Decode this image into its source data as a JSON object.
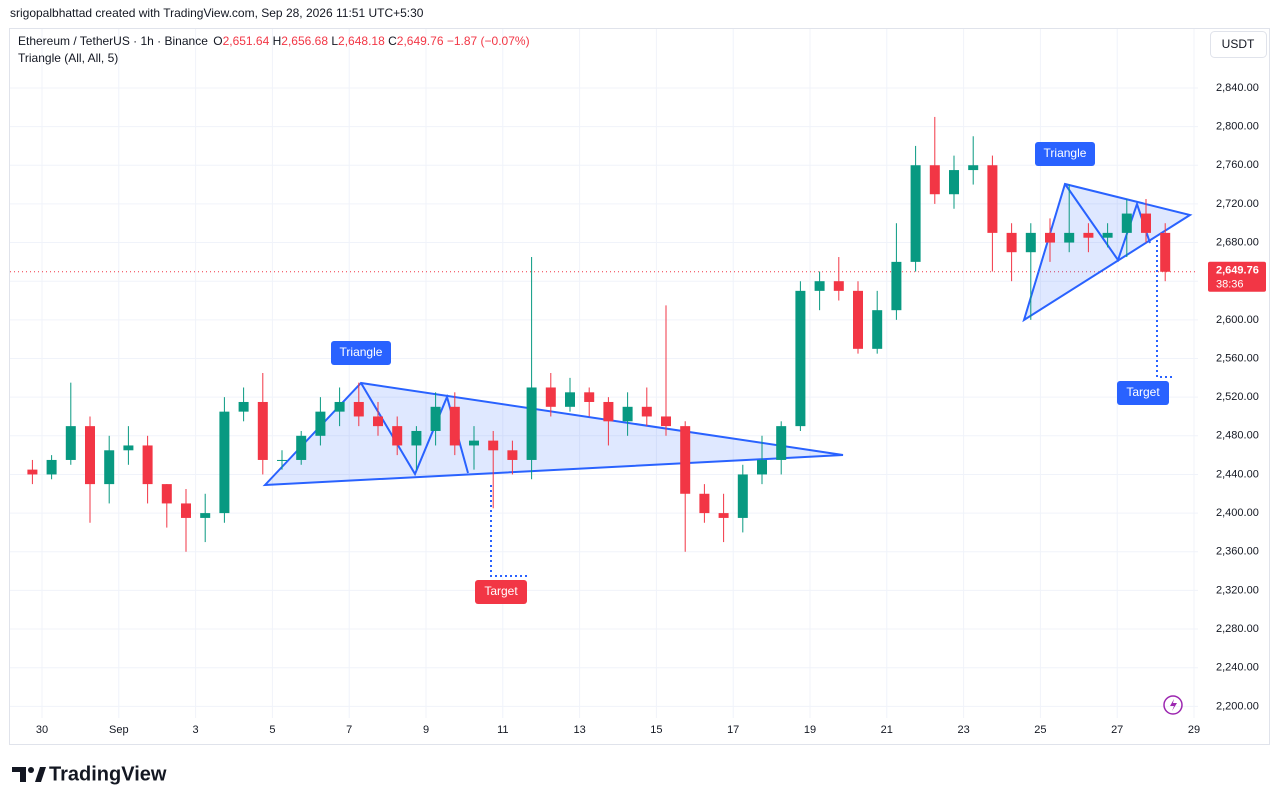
{
  "watermark": "srigopalbhattad created with TradingView.com, Sep 28, 2026 11:51 UTC+5:30",
  "branding": "TradingView",
  "currency": "USDT",
  "chart_data": {
    "type": "candlestick",
    "title": "Ethereum / TetherUS · 1h · Binance",
    "indicator": "Triangle (All, All, 5)",
    "ohlc_legend": [
      {
        "label": "O",
        "value": "2,651.64"
      },
      {
        "label": "H",
        "value": "2,656.68"
      },
      {
        "label": "L",
        "value": "2,648.18"
      },
      {
        "label": "C",
        "value": "2,649.76"
      }
    ],
    "change": "−1.87 (−0.07%)",
    "last_price": {
      "value": 2649.76,
      "label": "2,649.76"
    },
    "countdown": "38:36",
    "annotations": [
      "Triangle",
      "Target",
      "Triangle",
      "Target"
    ],
    "up_color": "#089981",
    "down_color": "#f23645",
    "grid": true,
    "categories": [
      null,
      "30",
      null,
      null,
      null,
      "Sep",
      null,
      null,
      null,
      "3",
      null,
      null,
      null,
      "5",
      null,
      null,
      null,
      "7",
      null,
      null,
      null,
      "9",
      null,
      null,
      null,
      "11",
      null,
      null,
      null,
      "13",
      null,
      null,
      null,
      "15",
      null,
      null,
      null,
      "17",
      null,
      null,
      null,
      "19",
      null,
      null,
      null,
      "21",
      null,
      null,
      null,
      "23",
      null,
      null,
      null,
      "25",
      null,
      null,
      null,
      "27",
      null,
      null,
      null,
      "29"
    ],
    "open": [
      2445,
      2440,
      2455,
      2490,
      2430,
      2465,
      2470,
      2430,
      2410,
      2395,
      2400,
      2505,
      2515,
      2455,
      2455,
      2480,
      2505,
      2515,
      2500,
      2490,
      2470,
      2485,
      2510,
      2470,
      2475,
      2465,
      2455,
      2530,
      2510,
      2525,
      2515,
      2495,
      2510,
      2500,
      2490,
      2420,
      2400,
      2395,
      2440,
      2455,
      2490,
      2630,
      2640,
      2630,
      2570,
      2610,
      2660,
      2760,
      2730,
      2755,
      2760,
      2690,
      2670,
      2690,
      2680,
      2690,
      2685,
      2690,
      2710,
      2690,
      null,
      null
    ],
    "high": [
      2455,
      2460,
      2535,
      2500,
      2480,
      2490,
      2480,
      2430,
      2425,
      2420,
      2520,
      2530,
      2545,
      2465,
      2485,
      2520,
      2530,
      2535,
      2515,
      2500,
      2490,
      2525,
      2525,
      2490,
      2485,
      2475,
      2665,
      2545,
      2540,
      2530,
      2520,
      2525,
      2530,
      2615,
      2495,
      2430,
      2420,
      2450,
      2480,
      2495,
      2640,
      2650,
      2665,
      2640,
      2630,
      2700,
      2780,
      2810,
      2770,
      2790,
      2770,
      2700,
      2700,
      2705,
      2740,
      2700,
      2700,
      2725,
      2725,
      2700,
      null,
      null
    ],
    "low": [
      2430,
      2435,
      2450,
      2390,
      2410,
      2450,
      2410,
      2385,
      2360,
      2370,
      2390,
      2495,
      2440,
      2445,
      2450,
      2470,
      2490,
      2490,
      2480,
      2460,
      2445,
      2470,
      2460,
      2445,
      2405,
      2440,
      2435,
      2500,
      2505,
      2500,
      2470,
      2480,
      2490,
      2480,
      2360,
      2390,
      2370,
      2380,
      2430,
      2440,
      2485,
      2610,
      2620,
      2565,
      2565,
      2600,
      2650,
      2720,
      2715,
      2740,
      2650,
      2640,
      2600,
      2660,
      2670,
      2670,
      2675,
      2665,
      2680,
      2640,
      null,
      null
    ],
    "close": [
      2440,
      2455,
      2490,
      2430,
      2465,
      2470,
      2430,
      2410,
      2395,
      2400,
      2505,
      2515,
      2455,
      2455,
      2480,
      2505,
      2515,
      2500,
      2490,
      2470,
      2485,
      2510,
      2470,
      2475,
      2465,
      2455,
      2530,
      2510,
      2525,
      2515,
      2495,
      2510,
      2500,
      2490,
      2420,
      2400,
      2395,
      2440,
      2455,
      2490,
      2630,
      2640,
      2630,
      2570,
      2610,
      2660,
      2760,
      2730,
      2755,
      2760,
      2690,
      2670,
      2690,
      2680,
      2690,
      2685,
      2690,
      2710,
      2690,
      2649.76,
      null,
      null
    ],
    "ylim": [
      2160,
      2901
    ],
    "yticks": [
      {
        "value": 2200,
        "label": "2,200.00"
      },
      {
        "value": 2240,
        "label": "2,240.00"
      },
      {
        "value": 2280,
        "label": "2,280.00"
      },
      {
        "value": 2320,
        "label": "2,320.00"
      },
      {
        "value": 2360,
        "label": "2,360.00"
      },
      {
        "value": 2400,
        "label": "2,400.00"
      },
      {
        "value": 2440,
        "label": "2,440.00"
      },
      {
        "value": 2480,
        "label": "2,480.00"
      },
      {
        "value": 2520,
        "label": "2,520.00"
      },
      {
        "value": 2560,
        "label": "2,560.00"
      },
      {
        "value": 2600,
        "label": "2,600.00"
      },
      {
        "value": 2640,
        "label": "2,640.00"
      },
      {
        "value": 2680,
        "label": "2,680.00"
      },
      {
        "value": 2720,
        "label": "2,720.00"
      },
      {
        "value": 2760,
        "label": "2,760.00"
      },
      {
        "value": 2800,
        "label": "2,800.00"
      },
      {
        "value": 2840,
        "label": "2,840.00"
      }
    ]
  }
}
